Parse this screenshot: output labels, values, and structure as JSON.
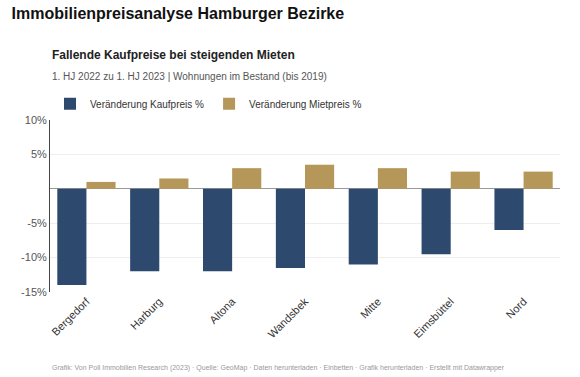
{
  "chart_data": {
    "type": "bar",
    "title": "Immobilienpreisanalyse Hamburger Bezirke",
    "subtitle": "Fallende Kaufpreise bei steigenden Mieten",
    "annotations": [
      "1. HJ 2022 zu 1. HJ 2023 | Wohnungen im Bestand (bis 2019)",
      "Grafik: Von Poll Immobilien Research (2023) · Quelle: GeoMap · Daten herunterladen · Einbetten · Grafik herunterladen · Erstellt mit Datawrapper"
    ],
    "categories": [
      "Bergedorf",
      "Harburg",
      "Altona",
      "Wandsbek",
      "Mitte",
      "Eimsbüttel",
      "Nord"
    ],
    "series": [
      {
        "name": "Veränderung Kaufpreis %",
        "color": "#2d4a6e",
        "values": [
          -14.0,
          -12.0,
          -12.0,
          -11.5,
          -11.0,
          -9.5,
          -6.0
        ]
      },
      {
        "name": "Veränderung Mietpreis %",
        "color": "#b5975a",
        "values": [
          1.0,
          1.5,
          3.0,
          3.5,
          3.0,
          2.5,
          2.5
        ]
      }
    ],
    "ylim": [
      -15,
      10
    ],
    "yticks": [
      {
        "value": -15,
        "label": "-15%"
      },
      {
        "value": -10,
        "label": "-10%"
      },
      {
        "value": -5,
        "label": "-5%"
      },
      {
        "value": 5,
        "label": "5%"
      },
      {
        "value": 10,
        "label": "10%"
      }
    ],
    "grid": true,
    "legend": "top"
  }
}
